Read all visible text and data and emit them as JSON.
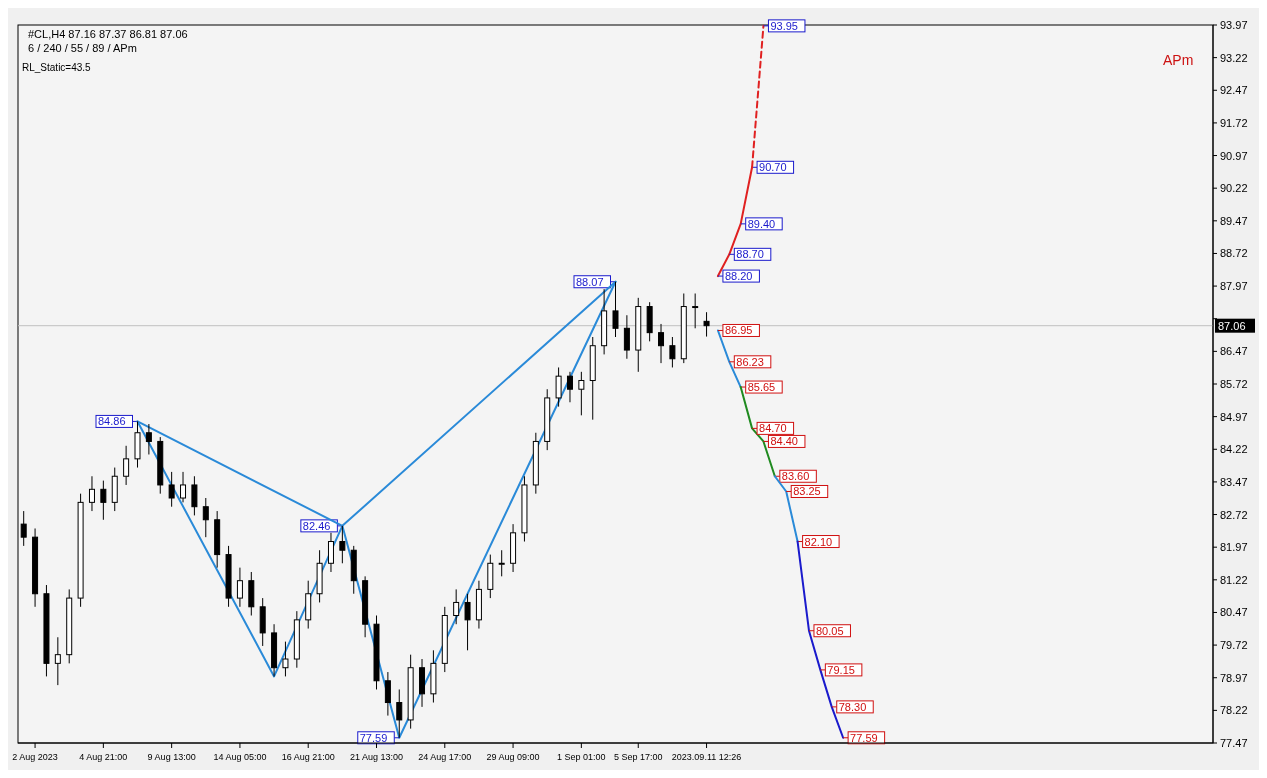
{
  "chart_data": {
    "type": "candlestick",
    "title": "#CL,H4 87.16 87.37 86.81 87.06",
    "subtitle": "6 / 240 / 55 / 89 / APm",
    "color": "#000000",
    "categories": [
      null,
      "2 Aug 2023",
      null,
      null,
      null,
      null,
      null,
      "4 Aug 21:00",
      null,
      null,
      null,
      null,
      null,
      "9 Aug 13:00",
      null,
      null,
      null,
      null,
      null,
      "14 Aug 05:00",
      null,
      null,
      null,
      null,
      null,
      "16 Aug 21:00",
      null,
      null,
      null,
      null,
      null,
      "21 Aug 13:00",
      null,
      null,
      null,
      null,
      null,
      "24 Aug 17:00",
      null,
      null,
      null,
      null,
      null,
      "29 Aug 09:00",
      null,
      null,
      null,
      null,
      null,
      "1 Sep 01:00",
      null,
      null,
      null,
      null,
      "5 Sep 17:00",
      null,
      null,
      null,
      null,
      null,
      "2023.09.11 12:26",
      null,
      null,
      null,
      null,
      null,
      null,
      null,
      null,
      null,
      null,
      null,
      null,
      null,
      null,
      null,
      null,
      null,
      null,
      null,
      null,
      null,
      null,
      null,
      null,
      null,
      null,
      null,
      null,
      null,
      null,
      null,
      null,
      null,
      null,
      null,
      null,
      null,
      null,
      null,
      null,
      null,
      null,
      null,
      null
    ],
    "ohlc": [
      [
        82.5,
        82.8,
        82.0,
        82.2
      ],
      [
        82.2,
        82.4,
        80.6,
        80.9
      ],
      [
        80.9,
        81.1,
        79.0,
        79.3
      ],
      [
        79.3,
        79.9,
        78.8,
        79.5
      ],
      [
        79.5,
        81.0,
        79.3,
        80.8
      ],
      [
        80.8,
        83.2,
        80.6,
        83.0
      ],
      [
        83.0,
        83.6,
        82.8,
        83.3
      ],
      [
        83.3,
        83.5,
        82.6,
        83.0
      ],
      [
        83.0,
        83.8,
        82.8,
        83.6
      ],
      [
        83.6,
        84.3,
        83.4,
        84.0
      ],
      [
        84.0,
        84.86,
        83.8,
        84.6
      ],
      [
        84.6,
        84.8,
        84.1,
        84.4
      ],
      [
        84.4,
        84.5,
        83.2,
        83.4
      ],
      [
        83.4,
        83.7,
        82.9,
        83.1
      ],
      [
        83.1,
        83.7,
        83.0,
        83.4
      ],
      [
        83.4,
        83.6,
        82.7,
        82.9
      ],
      [
        82.9,
        83.1,
        82.2,
        82.6
      ],
      [
        82.6,
        82.8,
        81.5,
        81.8
      ],
      [
        81.8,
        82.0,
        80.6,
        80.8
      ],
      [
        80.8,
        81.5,
        80.6,
        81.2
      ],
      [
        81.2,
        81.4,
        80.4,
        80.6
      ],
      [
        80.6,
        80.8,
        79.7,
        80.0
      ],
      [
        80.0,
        80.2,
        79.0,
        79.2
      ],
      [
        79.2,
        79.8,
        79.0,
        79.4
      ],
      [
        79.4,
        80.5,
        79.2,
        80.3
      ],
      [
        80.3,
        81.2,
        80.1,
        80.9
      ],
      [
        80.9,
        81.9,
        80.7,
        81.6
      ],
      [
        81.6,
        82.3,
        81.4,
        82.1
      ],
      [
        82.1,
        82.46,
        81.6,
        81.9
      ],
      [
        81.9,
        82.0,
        80.9,
        81.2
      ],
      [
        81.2,
        81.3,
        79.9,
        80.2
      ],
      [
        80.2,
        80.4,
        78.7,
        78.9
      ],
      [
        78.9,
        79.1,
        78.1,
        78.4
      ],
      [
        78.4,
        78.7,
        77.59,
        78.0
      ],
      [
        78.0,
        79.5,
        77.8,
        79.2
      ],
      [
        79.2,
        79.4,
        78.3,
        78.6
      ],
      [
        78.6,
        79.6,
        78.4,
        79.3
      ],
      [
        79.3,
        80.6,
        79.1,
        80.4
      ],
      [
        80.4,
        81.0,
        80.2,
        80.7
      ],
      [
        80.7,
        80.9,
        79.6,
        80.3
      ],
      [
        80.3,
        81.2,
        80.1,
        81.0
      ],
      [
        81.0,
        81.8,
        80.8,
        81.6
      ],
      [
        81.6,
        81.9,
        81.3,
        81.6
      ],
      [
        81.6,
        82.5,
        81.4,
        82.3
      ],
      [
        82.3,
        83.6,
        82.1,
        83.4
      ],
      [
        83.4,
        84.6,
        83.2,
        84.4
      ],
      [
        84.4,
        85.6,
        84.2,
        85.4
      ],
      [
        85.4,
        86.1,
        85.2,
        85.9
      ],
      [
        85.9,
        86.0,
        85.3,
        85.6
      ],
      [
        85.6,
        86.0,
        85.0,
        85.8
      ],
      [
        85.8,
        86.8,
        84.9,
        86.6
      ],
      [
        86.6,
        87.9,
        86.4,
        87.4
      ],
      [
        87.4,
        88.07,
        86.8,
        87.0
      ],
      [
        87.0,
        87.3,
        86.3,
        86.5
      ],
      [
        86.5,
        87.7,
        86.0,
        87.5
      ],
      [
        87.5,
        87.6,
        86.7,
        86.9
      ],
      [
        86.9,
        87.1,
        86.2,
        86.6
      ],
      [
        86.6,
        86.8,
        86.1,
        86.3
      ],
      [
        86.3,
        87.8,
        86.2,
        87.5
      ],
      [
        87.5,
        87.8,
        87.0,
        87.5
      ],
      [
        87.16,
        87.37,
        86.81,
        87.06
      ],
      null,
      null,
      null,
      null,
      null,
      null,
      null,
      null,
      null,
      null,
      null,
      null,
      null,
      null,
      null,
      null,
      null,
      null,
      null,
      null,
      null,
      null,
      null,
      null,
      null,
      null,
      null,
      null,
      null,
      null,
      null,
      null,
      null,
      null,
      null,
      null,
      null,
      null,
      null,
      null,
      null,
      null,
      null,
      null
    ],
    "series": [
      {
        "type": "line",
        "color": "#2a8ad8",
        "values": [
          null,
          null,
          null,
          null,
          null,
          null,
          null,
          null,
          null,
          null,
          84.86,
          null,
          null,
          null,
          null,
          null,
          null,
          null,
          null,
          null,
          null,
          null,
          79.0,
          null,
          null,
          null,
          null,
          null,
          82.46,
          null,
          null,
          null,
          null,
          77.59,
          null,
          null,
          null,
          null,
          null,
          null,
          null,
          null,
          null,
          null,
          null,
          null,
          null,
          null,
          null,
          null,
          null,
          null,
          88.07,
          null,
          null,
          null,
          null,
          null,
          null,
          null,
          null,
          null,
          null,
          null,
          null,
          null,
          null,
          null,
          null,
          null,
          null,
          null,
          null,
          null,
          null,
          null,
          null,
          null,
          null,
          null,
          null,
          null,
          null,
          null,
          null,
          null,
          null,
          null,
          null,
          null,
          null,
          null,
          null,
          null,
          null,
          null,
          null,
          null,
          null,
          null,
          null,
          null,
          null,
          null,
          null
        ],
        "value_labels": [
          null,
          null,
          null,
          null,
          null,
          null,
          null,
          null,
          null,
          null,
          "84.86",
          null,
          null,
          null,
          null,
          null,
          null,
          null,
          null,
          null,
          null,
          null,
          null,
          null,
          null,
          null,
          null,
          null,
          "82.46",
          null,
          null,
          null,
          null,
          "77.59",
          null,
          null,
          null,
          null,
          null,
          null,
          null,
          null,
          null,
          null,
          null,
          null,
          null,
          null,
          null,
          null,
          null,
          null,
          "88.07",
          null,
          null,
          null,
          null,
          null,
          null,
          null,
          null,
          null,
          null,
          null,
          null,
          null,
          null,
          null,
          null,
          null,
          null,
          null,
          null,
          null,
          null,
          null,
          null,
          null,
          null,
          null,
          null,
          null,
          null,
          null,
          null,
          null,
          null,
          null,
          null,
          null,
          null,
          null,
          null,
          null,
          null,
          null,
          null,
          null,
          null,
          null,
          null,
          null,
          null,
          null,
          null
        ]
      },
      {
        "type": "line",
        "color": "#2a8ad8",
        "values": [
          null,
          null,
          null,
          null,
          null,
          null,
          null,
          null,
          null,
          null,
          84.86,
          null,
          null,
          null,
          null,
          null,
          null,
          null,
          null,
          null,
          null,
          null,
          null,
          null,
          null,
          null,
          null,
          null,
          82.46,
          null,
          null,
          null,
          null,
          null,
          null,
          null,
          null,
          null,
          null,
          null,
          null,
          null,
          null,
          null,
          null,
          null,
          null,
          null,
          null,
          null,
          null,
          null,
          88.07,
          null,
          null,
          null,
          null,
          null,
          null,
          null,
          null,
          null,
          null,
          null,
          null,
          null,
          null,
          null,
          null,
          null,
          null,
          null,
          null,
          null,
          null,
          null,
          null,
          null,
          null,
          null,
          null,
          null,
          null,
          null,
          null,
          null,
          null,
          null,
          null,
          null,
          null,
          null,
          null,
          null,
          null,
          null,
          null,
          null,
          null,
          null,
          null,
          null,
          null,
          null,
          null
        ]
      },
      {
        "type": "line",
        "color": "#e02020",
        "values": [
          null,
          null,
          null,
          null,
          null,
          null,
          null,
          null,
          null,
          null,
          null,
          null,
          null,
          null,
          null,
          null,
          null,
          null,
          null,
          null,
          null,
          null,
          null,
          null,
          null,
          null,
          null,
          null,
          null,
          null,
          null,
          null,
          null,
          null,
          null,
          null,
          null,
          null,
          null,
          null,
          null,
          null,
          null,
          null,
          null,
          null,
          null,
          null,
          null,
          null,
          null,
          null,
          null,
          null,
          null,
          null,
          null,
          null,
          null,
          null,
          null,
          88.2,
          88.7,
          89.4,
          90.7,
          null,
          null,
          null,
          null,
          null,
          null,
          null,
          null,
          null,
          null,
          null,
          null,
          null,
          null,
          null,
          null,
          null,
          null,
          null,
          null,
          null,
          null,
          null,
          null,
          null,
          null,
          null,
          null,
          null,
          null,
          null,
          null,
          null,
          null,
          null,
          null,
          null,
          null,
          null,
          null
        ],
        "value_labels": [
          null,
          null,
          null,
          null,
          null,
          null,
          null,
          null,
          null,
          null,
          null,
          null,
          null,
          null,
          null,
          null,
          null,
          null,
          null,
          null,
          null,
          null,
          null,
          null,
          null,
          null,
          null,
          null,
          null,
          null,
          null,
          null,
          null,
          null,
          null,
          null,
          null,
          null,
          null,
          null,
          null,
          null,
          null,
          null,
          null,
          null,
          null,
          null,
          null,
          null,
          null,
          null,
          null,
          null,
          null,
          null,
          null,
          null,
          null,
          null,
          null,
          "88.20",
          "88.70",
          "89.40",
          "90.70",
          null,
          null,
          null,
          null,
          null,
          null,
          null,
          null,
          null,
          null,
          null,
          null,
          null,
          null,
          null,
          null,
          null,
          null,
          null,
          null,
          null,
          null,
          null,
          null,
          null,
          null,
          null,
          null,
          null,
          null,
          null,
          null,
          null,
          null,
          null,
          null,
          null,
          null,
          null,
          null
        ]
      },
      {
        "type": "line",
        "color": "#e02020",
        "line_style": "dashed",
        "values": [
          null,
          null,
          null,
          null,
          null,
          null,
          null,
          null,
          null,
          null,
          null,
          null,
          null,
          null,
          null,
          null,
          null,
          null,
          null,
          null,
          null,
          null,
          null,
          null,
          null,
          null,
          null,
          null,
          null,
          null,
          null,
          null,
          null,
          null,
          null,
          null,
          null,
          null,
          null,
          null,
          null,
          null,
          null,
          null,
          null,
          null,
          null,
          null,
          null,
          null,
          null,
          null,
          null,
          null,
          null,
          null,
          null,
          null,
          null,
          null,
          null,
          null,
          null,
          null,
          90.7,
          93.95,
          null,
          null,
          null,
          null,
          null,
          null,
          null,
          null,
          null,
          null,
          null,
          null,
          null,
          null,
          null,
          null,
          null,
          null,
          null,
          null,
          null,
          null,
          null,
          null,
          null,
          null,
          null,
          null,
          null,
          null,
          null,
          null,
          null,
          null,
          null,
          null,
          null,
          null,
          null
        ],
        "value_labels": [
          null,
          null,
          null,
          null,
          null,
          null,
          null,
          null,
          null,
          null,
          null,
          null,
          null,
          null,
          null,
          null,
          null,
          null,
          null,
          null,
          null,
          null,
          null,
          null,
          null,
          null,
          null,
          null,
          null,
          null,
          null,
          null,
          null,
          null,
          null,
          null,
          null,
          null,
          null,
          null,
          null,
          null,
          null,
          null,
          null,
          null,
          null,
          null,
          null,
          null,
          null,
          null,
          null,
          null,
          null,
          null,
          null,
          null,
          null,
          null,
          null,
          null,
          null,
          null,
          null,
          "93.95",
          null,
          null,
          null,
          null,
          null,
          null,
          null,
          null,
          null,
          null,
          null,
          null,
          null,
          null,
          null,
          null,
          null,
          null,
          null,
          null,
          null,
          null,
          null,
          null,
          null,
          null,
          null,
          null,
          null,
          null,
          null,
          null,
          null,
          null,
          null,
          null,
          null,
          null,
          null
        ]
      },
      {
        "type": "line",
        "color": "#2a8ad8",
        "values": [
          null,
          null,
          null,
          null,
          null,
          null,
          null,
          null,
          null,
          null,
          null,
          null,
          null,
          null,
          null,
          null,
          null,
          null,
          null,
          null,
          null,
          null,
          null,
          null,
          null,
          null,
          null,
          null,
          null,
          null,
          null,
          null,
          null,
          null,
          null,
          null,
          null,
          null,
          null,
          null,
          null,
          null,
          null,
          null,
          null,
          null,
          null,
          null,
          null,
          null,
          null,
          null,
          null,
          null,
          null,
          null,
          null,
          null,
          null,
          null,
          null,
          86.95,
          86.23,
          85.65,
          null,
          null,
          null,
          null,
          null,
          null,
          null,
          null,
          null,
          null,
          null,
          null,
          null,
          null,
          null,
          null,
          null,
          null,
          null,
          null,
          null,
          null,
          null,
          null,
          null,
          null,
          null,
          null,
          null,
          null,
          null,
          null,
          null,
          null,
          null,
          null,
          null,
          null,
          null,
          null,
          null
        ],
        "value_labels": [
          null,
          null,
          null,
          null,
          null,
          null,
          null,
          null,
          null,
          null,
          null,
          null,
          null,
          null,
          null,
          null,
          null,
          null,
          null,
          null,
          null,
          null,
          null,
          null,
          null,
          null,
          null,
          null,
          null,
          null,
          null,
          null,
          null,
          null,
          null,
          null,
          null,
          null,
          null,
          null,
          null,
          null,
          null,
          null,
          null,
          null,
          null,
          null,
          null,
          null,
          null,
          null,
          null,
          null,
          null,
          null,
          null,
          null,
          null,
          null,
          null,
          "86.95",
          "86.23",
          "85.65",
          null,
          null,
          null,
          null,
          null,
          null,
          null,
          null,
          null,
          null,
          null,
          null,
          null,
          null,
          null,
          null,
          null,
          null,
          null,
          null,
          null,
          null,
          null,
          null,
          null,
          null,
          null,
          null,
          null,
          null,
          null,
          null,
          null,
          null,
          null,
          null,
          null,
          null,
          null,
          null,
          null
        ]
      },
      {
        "type": "line",
        "color": "#1f8a1f",
        "values": [
          null,
          null,
          null,
          null,
          null,
          null,
          null,
          null,
          null,
          null,
          null,
          null,
          null,
          null,
          null,
          null,
          null,
          null,
          null,
          null,
          null,
          null,
          null,
          null,
          null,
          null,
          null,
          null,
          null,
          null,
          null,
          null,
          null,
          null,
          null,
          null,
          null,
          null,
          null,
          null,
          null,
          null,
          null,
          null,
          null,
          null,
          null,
          null,
          null,
          null,
          null,
          null,
          null,
          null,
          null,
          null,
          null,
          null,
          null,
          null,
          null,
          null,
          null,
          85.65,
          84.7,
          84.4,
          83.6,
          null,
          null,
          null,
          null,
          null,
          null,
          null,
          null,
          null,
          null,
          null,
          null,
          null,
          null,
          null,
          null,
          null,
          null,
          null,
          null,
          null,
          null,
          null,
          null,
          null,
          null,
          null,
          null,
          null,
          null,
          null,
          null,
          null,
          null,
          null,
          null,
          null,
          null
        ],
        "value_labels": [
          null,
          null,
          null,
          null,
          null,
          null,
          null,
          null,
          null,
          null,
          null,
          null,
          null,
          null,
          null,
          null,
          null,
          null,
          null,
          null,
          null,
          null,
          null,
          null,
          null,
          null,
          null,
          null,
          null,
          null,
          null,
          null,
          null,
          null,
          null,
          null,
          null,
          null,
          null,
          null,
          null,
          null,
          null,
          null,
          null,
          null,
          null,
          null,
          null,
          null,
          null,
          null,
          null,
          null,
          null,
          null,
          null,
          null,
          null,
          null,
          null,
          null,
          null,
          null,
          "84.70",
          "84.40",
          "83.60",
          null,
          null,
          null,
          null,
          null,
          null,
          null,
          null,
          null,
          null,
          null,
          null,
          null,
          null,
          null,
          null,
          null,
          null,
          null,
          null,
          null,
          null,
          null,
          null,
          null,
          null,
          null,
          null,
          null,
          null,
          null,
          null,
          null,
          null,
          null,
          null,
          null,
          null
        ]
      },
      {
        "type": "line",
        "color": "#2a8ad8",
        "values": [
          null,
          null,
          null,
          null,
          null,
          null,
          null,
          null,
          null,
          null,
          null,
          null,
          null,
          null,
          null,
          null,
          null,
          null,
          null,
          null,
          null,
          null,
          null,
          null,
          null,
          null,
          null,
          null,
          null,
          null,
          null,
          null,
          null,
          null,
          null,
          null,
          null,
          null,
          null,
          null,
          null,
          null,
          null,
          null,
          null,
          null,
          null,
          null,
          null,
          null,
          null,
          null,
          null,
          null,
          null,
          null,
          null,
          null,
          null,
          null,
          null,
          null,
          null,
          null,
          null,
          null,
          83.6,
          83.25,
          82.1,
          null,
          null,
          null,
          null,
          null,
          null,
          null,
          null,
          null,
          null,
          null,
          null,
          null,
          null,
          null,
          null,
          null,
          null,
          null,
          null,
          null,
          null,
          null,
          null,
          null,
          null,
          null,
          null,
          null,
          null,
          null,
          null,
          null,
          null,
          null,
          null
        ],
        "value_labels": [
          null,
          null,
          null,
          null,
          null,
          null,
          null,
          null,
          null,
          null,
          null,
          null,
          null,
          null,
          null,
          null,
          null,
          null,
          null,
          null,
          null,
          null,
          null,
          null,
          null,
          null,
          null,
          null,
          null,
          null,
          null,
          null,
          null,
          null,
          null,
          null,
          null,
          null,
          null,
          null,
          null,
          null,
          null,
          null,
          null,
          null,
          null,
          null,
          null,
          null,
          null,
          null,
          null,
          null,
          null,
          null,
          null,
          null,
          null,
          null,
          null,
          null,
          null,
          null,
          null,
          null,
          null,
          "83.25",
          "82.10",
          null,
          null,
          null,
          null,
          null,
          null,
          null,
          null,
          null,
          null,
          null,
          null,
          null,
          null,
          null,
          null,
          null,
          null,
          null,
          null,
          null,
          null,
          null,
          null,
          null,
          null,
          null,
          null,
          null,
          null,
          null,
          null,
          null,
          null,
          null,
          null
        ]
      },
      {
        "type": "line",
        "color": "#1a1acc",
        "values": [
          null,
          null,
          null,
          null,
          null,
          null,
          null,
          null,
          null,
          null,
          null,
          null,
          null,
          null,
          null,
          null,
          null,
          null,
          null,
          null,
          null,
          null,
          null,
          null,
          null,
          null,
          null,
          null,
          null,
          null,
          null,
          null,
          null,
          null,
          null,
          null,
          null,
          null,
          null,
          null,
          null,
          null,
          null,
          null,
          null,
          null,
          null,
          null,
          null,
          null,
          null,
          null,
          null,
          null,
          null,
          null,
          null,
          null,
          null,
          null,
          null,
          null,
          null,
          null,
          null,
          null,
          null,
          null,
          82.1,
          80.05,
          79.15,
          78.3,
          77.59,
          null,
          null,
          null,
          null,
          null,
          null,
          null,
          null,
          null,
          null,
          null,
          null,
          null,
          null,
          null,
          null,
          null,
          null,
          null,
          null,
          null,
          null,
          null,
          null,
          null,
          null,
          null,
          null,
          null,
          null,
          null,
          null
        ],
        "value_labels": [
          null,
          null,
          null,
          null,
          null,
          null,
          null,
          null,
          null,
          null,
          null,
          null,
          null,
          null,
          null,
          null,
          null,
          null,
          null,
          null,
          null,
          null,
          null,
          null,
          null,
          null,
          null,
          null,
          null,
          null,
          null,
          null,
          null,
          null,
          null,
          null,
          null,
          null,
          null,
          null,
          null,
          null,
          null,
          null,
          null,
          null,
          null,
          null,
          null,
          null,
          null,
          null,
          null,
          null,
          null,
          null,
          null,
          null,
          null,
          null,
          null,
          null,
          null,
          null,
          null,
          null,
          null,
          null,
          null,
          "80.05",
          "79.15",
          "78.30",
          "77.59",
          null,
          null,
          null,
          null,
          null,
          null,
          null,
          null,
          null,
          null,
          null,
          null,
          null,
          null,
          null,
          null,
          null,
          null,
          null,
          null,
          null,
          null,
          null,
          null,
          null,
          null,
          null,
          null,
          null,
          null,
          null,
          null
        ]
      }
    ],
    "ylim": [
      77.47,
      93.97
    ],
    "yticks": [
      77.47,
      78.22,
      78.97,
      79.72,
      80.47,
      81.22,
      81.97,
      82.72,
      83.47,
      84.22,
      84.97,
      85.72,
      86.47,
      {
        "value": 87.22,
        "label": null
      },
      87.97,
      88.72,
      89.47,
      90.22,
      90.97,
      91.72,
      92.47,
      93.22,
      93.97
    ],
    "ref_lines": [
      {
        "axis": "y",
        "value": 87.06,
        "label": "87.06",
        "color": "#c0c0c0",
        "line_style": "solid"
      }
    ],
    "annotations": [
      "RL_Static=43.5",
      "APm"
    ]
  }
}
